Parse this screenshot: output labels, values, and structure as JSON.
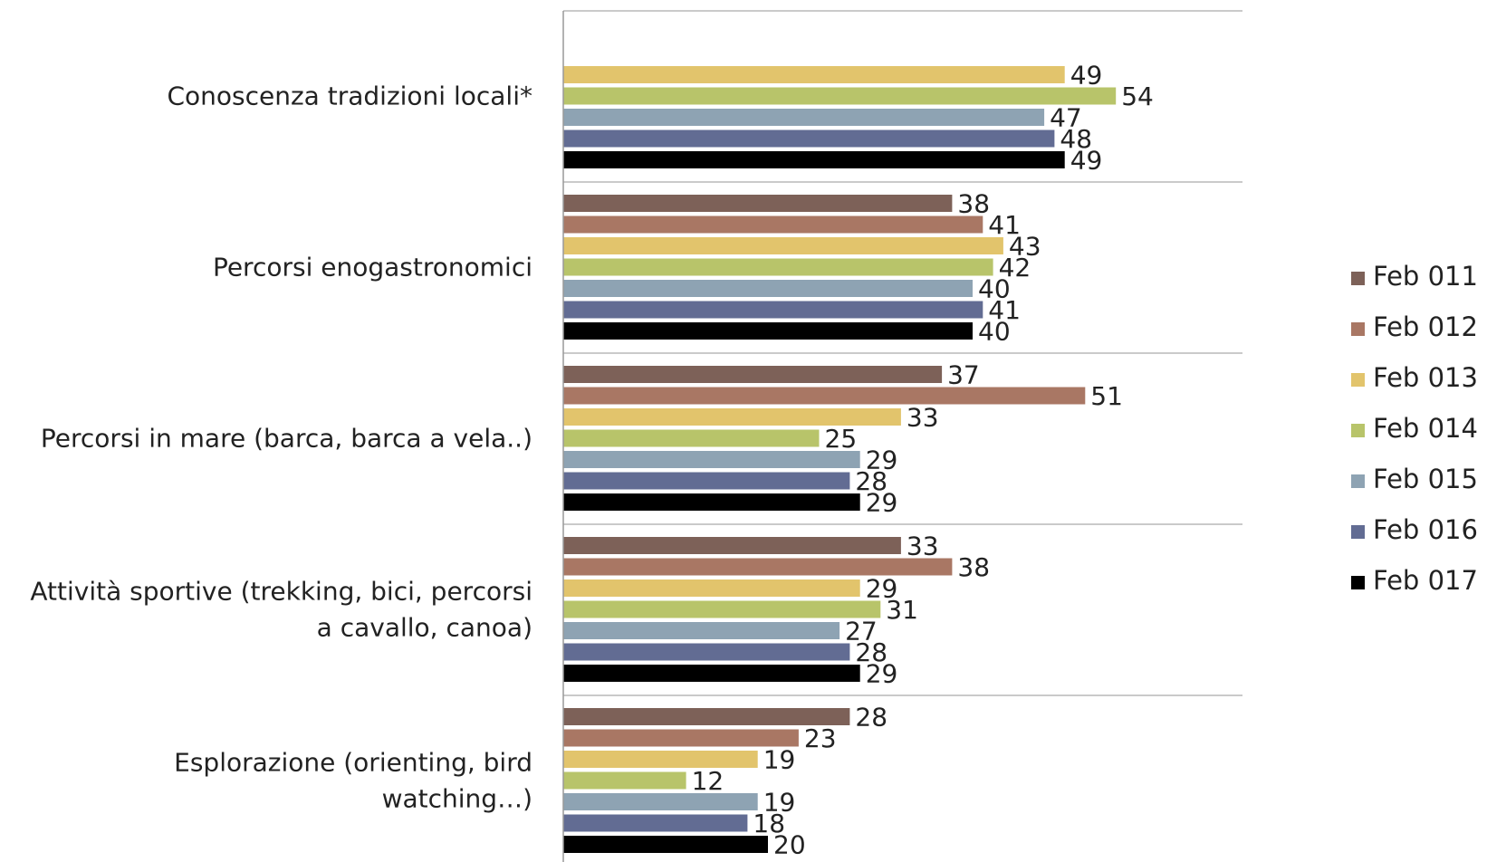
{
  "chart_data": {
    "type": "bar",
    "orientation": "horizontal",
    "categories": [
      "Conoscenza tradizioni locali*",
      "Percorsi enogastronomici",
      "Percorsi in mare (barca, barca a vela..)",
      "Attività sportive (trekking, bici, percorsi a cavallo, canoa)",
      "Esplorazione (orienting, bird watching…)"
    ],
    "series": [
      {
        "name": "Feb 011",
        "color": "#7d6158",
        "values": [
          null,
          38,
          37,
          33,
          28
        ]
      },
      {
        "name": "Feb 012",
        "color": "#a97764",
        "values": [
          null,
          41,
          51,
          38,
          23
        ]
      },
      {
        "name": "Feb 013",
        "color": "#e2c46c",
        "values": [
          49,
          43,
          33,
          29,
          19
        ]
      },
      {
        "name": "Feb 014",
        "color": "#b8c46a",
        "values": [
          54,
          42,
          25,
          31,
          12
        ]
      },
      {
        "name": "Feb 015",
        "color": "#8ea3b3",
        "values": [
          47,
          40,
          29,
          27,
          19
        ]
      },
      {
        "name": "Feb 016",
        "color": "#626c93",
        "values": [
          48,
          41,
          28,
          28,
          18
        ]
      },
      {
        "name": "Feb 017",
        "color": "#000000",
        "values": [
          49,
          40,
          29,
          29,
          20
        ]
      }
    ],
    "xlim": [
      0,
      60
    ],
    "gridlines": true,
    "legend_position": "right"
  }
}
